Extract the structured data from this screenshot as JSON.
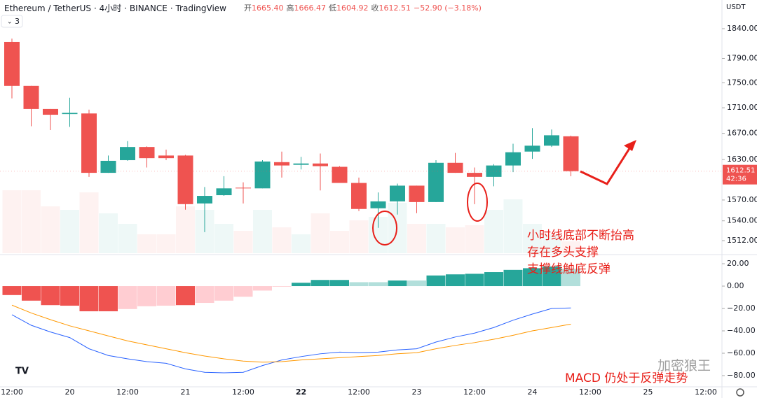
{
  "chart_data": {
    "type": "candlestick",
    "title": "Ethereum / TetherUS",
    "interval": "4小时",
    "exchange": "BINANCE",
    "source": "TradingView",
    "currency": "USDT",
    "indicator_count": "3",
    "ohlc_legend": [
      {
        "key": "开",
        "value": "1665.40"
      },
      {
        "key": "高",
        "value": "1666.47"
      },
      {
        "key": "低",
        "value": "1604.92"
      },
      {
        "key": "收",
        "value": "1612.51"
      },
      {
        "key": "",
        "value": "−52.90 (−3.18%)"
      }
    ],
    "log_scale": true,
    "ylim": [
      1494.5,
      1889.5
    ],
    "yticks": [
      {
        "value": 1840,
        "label": "1840.00"
      },
      {
        "value": 1790,
        "label": "1790.00"
      },
      {
        "value": 1750,
        "label": "1750.00"
      },
      {
        "value": 1710,
        "label": "1710.00"
      },
      {
        "value": 1670,
        "label": "1670.00"
      },
      {
        "value": 1630,
        "label": "1630.00"
      },
      {
        "value": 1570,
        "label": "1570.00"
      },
      {
        "value": 1540,
        "label": "1540.00"
      },
      {
        "value": 1512,
        "label": "1512.00"
      }
    ],
    "last_price": {
      "value": 1612.51,
      "label": "1612.51",
      "countdown": "42:36"
    },
    "up_color": "#26a69a",
    "down_color": "#ef5350",
    "open": [
      1817.5,
      1745,
      1708,
      1700,
      1701,
      1610,
      1629,
      1649,
      1636,
      1636,
      1565,
      1577,
      1588,
      1587,
      1626,
      1622,
      1624,
      1619,
      1595,
      1558,
      1568,
      1591,
      1567,
      1625,
      1610,
      1604,
      1621,
      1642,
      1651,
      1665.4
    ],
    "high": [
      1823,
      1745,
      1708,
      1726,
      1707,
      1636,
      1658,
      1650,
      1645,
      1637,
      1589,
      1605,
      1596,
      1629,
      1642,
      1634,
      1639,
      1620,
      1603,
      1581,
      1594,
      1591,
      1629,
      1640,
      1618,
      1623,
      1654,
      1678,
      1676,
      1666.47
    ],
    "low": [
      1725,
      1681,
      1675,
      1680,
      1604,
      1610,
      1628,
      1618,
      1629,
      1556,
      1524,
      1576,
      1565,
      1587,
      1603,
      1615,
      1584,
      1595,
      1554,
      1530,
      1549,
      1551,
      1567,
      1610,
      1564,
      1590,
      1611,
      1631,
      1649,
      1604.92
    ],
    "close": [
      1745,
      1708,
      1699,
      1702,
      1610,
      1628,
      1649,
      1632,
      1632,
      1564,
      1576,
      1587,
      1587,
      1627,
      1621,
      1624,
      1620,
      1595,
      1557,
      1568,
      1591,
      1567,
      1625,
      1610,
      1604,
      1621,
      1641,
      1651,
      1667,
      1612.51
    ],
    "volume": [
      90,
      90,
      67,
      62,
      87,
      57,
      42,
      27,
      27,
      67,
      62,
      42,
      32,
      62,
      37,
      27,
      57,
      32,
      47,
      52,
      72,
      42,
      42,
      37,
      40,
      62,
      77,
      42,
      27,
      17
    ],
    "vlim": [
      0,
      100
    ],
    "xtick_labels": [
      "12:00",
      "20",
      "12:00",
      "21",
      "12:00",
      "22",
      "12:00",
      "23",
      "12:00",
      "24",
      "12:00",
      "25",
      "12:00"
    ],
    "macd": {
      "ylim": [
        -90,
        26.9
      ],
      "yticks": [
        {
          "value": 20,
          "label": "20.00"
        },
        {
          "value": 0,
          "label": "0.00"
        },
        {
          "value": -20,
          "label": "−20.00"
        },
        {
          "value": -40,
          "label": "−40.00"
        },
        {
          "value": -60,
          "label": "−60.00"
        },
        {
          "value": -80,
          "label": "−80.00"
        }
      ],
      "histogram": [
        -8,
        -13,
        -17,
        -17.5,
        -22.5,
        -22.5,
        -20.5,
        -18,
        -17.5,
        -17,
        -15,
        -13,
        -9.5,
        -4,
        -0.5,
        3,
        5.5,
        5.5,
        3.5,
        3.5,
        5,
        5,
        9.5,
        10.5,
        11,
        12.5,
        14.5,
        16,
        17.5,
        15.5
      ],
      "histogram_colors": [
        "#ef5350",
        "#ef5350",
        "#ef5350",
        "#ef5350",
        "#ef5350",
        "#ef5350",
        "#ffcdd2",
        "#ffcdd2",
        "#ffcdd2",
        "#ef5350",
        "#ffcdd2",
        "#ffcdd2",
        "#ffcdd2",
        "#ffcdd2",
        "#ffcdd2",
        "#26a69a",
        "#26a69a",
        "#26a69a",
        "#b2dfdb",
        "#b2dfdb",
        "#26a69a",
        "#b2dfdb",
        "#26a69a",
        "#26a69a",
        "#26a69a",
        "#26a69a",
        "#26a69a",
        "#26a69a",
        "#26a69a",
        "#b2dfdb"
      ],
      "series": [
        {
          "color": "#2962ff",
          "values": [
            -25.6,
            -35,
            -41,
            -46,
            -56,
            -62,
            -65,
            -67.5,
            -69,
            -74,
            -77,
            -77.5,
            -77,
            -71,
            -66,
            -63,
            -60.5,
            -59,
            -59.5,
            -59,
            -57,
            -56,
            -50,
            -45.5,
            -42,
            -37,
            -30.5,
            -25,
            -20,
            -19.5
          ]
        },
        {
          "color": "#ff9800",
          "values": [
            -17,
            -24,
            -30,
            -35.5,
            -40,
            -44.5,
            -49,
            -52.5,
            -56,
            -59.5,
            -62.5,
            -65,
            -67,
            -68,
            -67.5,
            -66,
            -65,
            -64,
            -63,
            -62,
            -60.5,
            -59.5,
            -56,
            -53,
            -50.5,
            -47.5,
            -44,
            -40,
            -37,
            -34
          ]
        }
      ]
    },
    "annotations": [
      "小时线底部不断抬高",
      "存在多头支撑",
      "支撑线触底反弹",
      "MACD 仍处于反弹走势"
    ],
    "watermark": "加密狼王"
  }
}
